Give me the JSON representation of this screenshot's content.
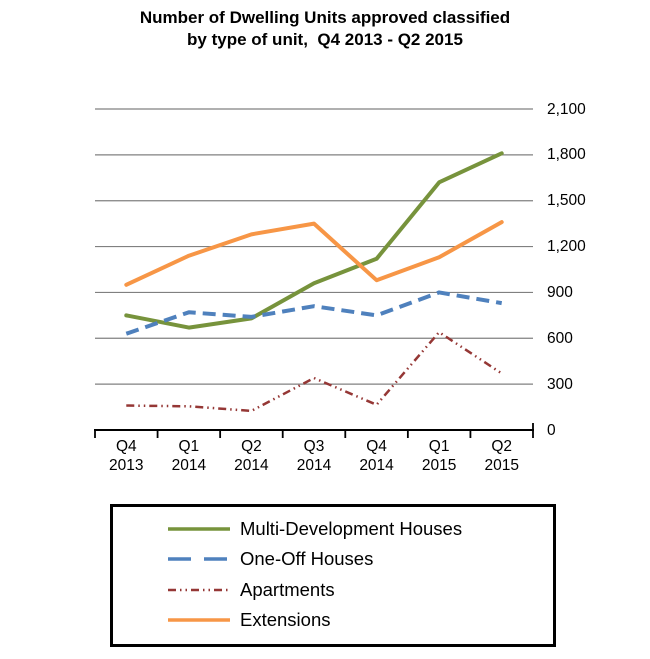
{
  "title": {
    "line1": "Number of Dwelling Units approved classified",
    "line2": "by type of unit,  Q4 2013 - Q2 2015"
  },
  "chart_data": {
    "type": "line",
    "title": "Number of Dwelling Units approved classified by type of unit, Q4 2013 - Q2 2015",
    "categories": [
      {
        "quarter": "Q4",
        "year": "2013"
      },
      {
        "quarter": "Q1",
        "year": "2014"
      },
      {
        "quarter": "Q2",
        "year": "2014"
      },
      {
        "quarter": "Q3",
        "year": "2014"
      },
      {
        "quarter": "Q4",
        "year": "2014"
      },
      {
        "quarter": "Q1",
        "year": "2015"
      },
      {
        "quarter": "Q2",
        "year": "2015"
      }
    ],
    "ylim": [
      0,
      2100
    ],
    "y_ticks": [
      {
        "value": 0,
        "label": "0"
      },
      {
        "value": 300,
        "label": "300"
      },
      {
        "value": 600,
        "label": "600"
      },
      {
        "value": 900,
        "label": "900"
      },
      {
        "value": 1200,
        "label": "1,200"
      },
      {
        "value": 1500,
        "label": "1,500"
      },
      {
        "value": 1800,
        "label": "1,800"
      },
      {
        "value": 2100,
        "label": "2,100"
      }
    ],
    "grid": true,
    "legend_position": "bottom",
    "series": [
      {
        "name": "Multi-Development Houses",
        "color": "#77933C",
        "style": "solid",
        "width": 4,
        "values": [
          750,
          670,
          730,
          960,
          1120,
          1620,
          1810
        ]
      },
      {
        "name": "One-Off Houses",
        "color": "#4F81BD",
        "style": "dashed",
        "width": 4,
        "dash": [
          13,
          7
        ],
        "legend_dash": [
          23,
          13
        ],
        "values": [
          630,
          770,
          740,
          810,
          750,
          900,
          830
        ]
      },
      {
        "name": "Apartments",
        "color": "#953735",
        "style": "dash-dot-dot",
        "width": 2.5,
        "dash": [
          8,
          4,
          1.5,
          4,
          1.5,
          4
        ],
        "legend_dash": [
          8,
          4,
          1.5,
          4,
          1.5,
          4
        ],
        "values": [
          160,
          155,
          125,
          340,
          165,
          640,
          370
        ]
      },
      {
        "name": "Extensions",
        "color": "#F79646",
        "style": "solid",
        "width": 4,
        "values": [
          950,
          1140,
          1280,
          1350,
          980,
          1130,
          1360
        ]
      }
    ]
  },
  "colors": {
    "grid": "#808080",
    "axis": "#000000",
    "text": "#000000",
    "background": "#FFFFFF",
    "legend_border": "#000000"
  }
}
